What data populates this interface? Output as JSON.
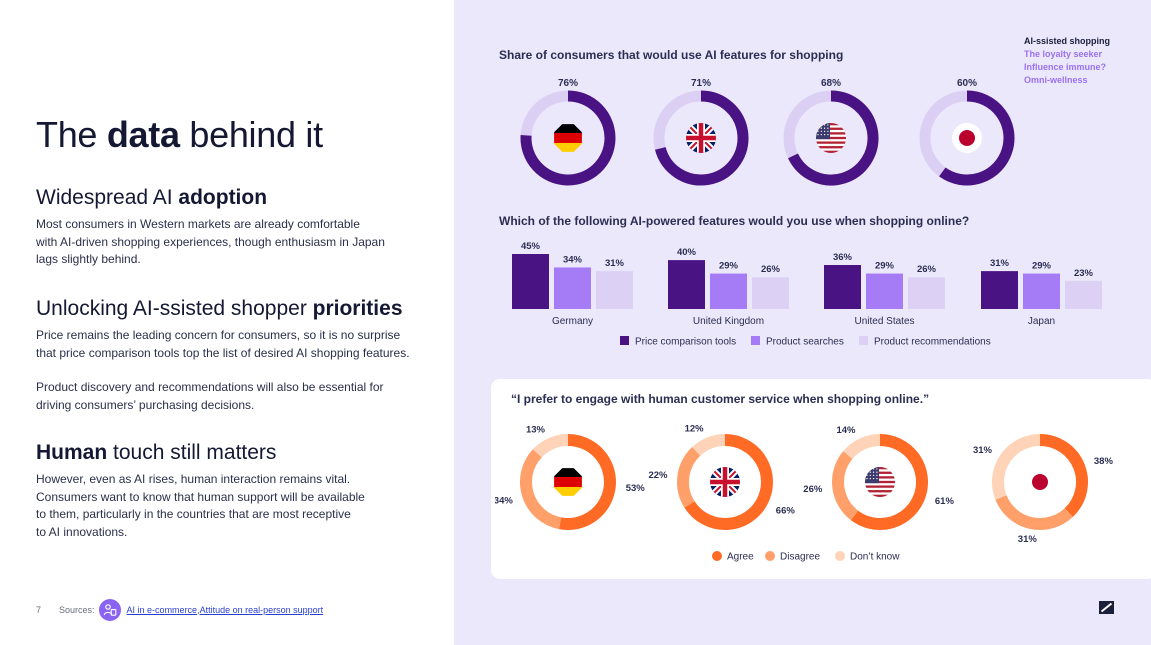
{
  "page": {
    "title_pre": "The ",
    "title_bold": "data",
    "title_post": " behind it",
    "page_number": "7"
  },
  "sections": [
    {
      "heading_pre": "Widespread AI ",
      "heading_bold": "adoption",
      "heading_post": "",
      "paragraphs": [
        "Most consumers in Western markets are already comfortable\nwith AI-driven shopping experiences, though enthusiasm in Japan\nlags slightly behind."
      ]
    },
    {
      "heading_pre": "Unlocking AI-ssisted shopper ",
      "heading_bold": "priorities",
      "heading_post": "",
      "paragraphs": [
        "Price remains the leading concern for consumers, so it is no surprise\nthat price comparison tools top the list of desired AI shopping features.",
        "Product discovery and recommendations will also be essential for\ndriving consumers’ purchasing decisions."
      ]
    },
    {
      "heading_pre": "",
      "heading_bold": "Human",
      "heading_post": " touch still matters",
      "paragraphs": [
        "However, even as AI rises, human interaction remains vital.\nConsumers want to know that human support will be available\nto them, particularly in the countries that are most receptive\nto AI innovations."
      ]
    }
  ],
  "footer": {
    "sources_label": "Sources:",
    "link1": "AI in e-commerce",
    "separator": ", ",
    "link2": "Attitude on real-person support"
  },
  "segments": {
    "items": [
      {
        "label": "AI-ssisted shopping",
        "color": "#1b1f3b"
      },
      {
        "label": "The loyalty seeker",
        "color": "#9a72f0"
      },
      {
        "label": "Influence immune?",
        "color": "#9a72f0"
      },
      {
        "label": "Omni-wellness",
        "color": "#9a72f0"
      }
    ]
  },
  "icons": {
    "sources": "people-icon",
    "brand": "brand-logo-icon",
    "flags": [
      "germany-flag-icon",
      "uk-flag-icon",
      "us-flag-icon",
      "japan-flag-icon"
    ]
  },
  "chart_data": [
    {
      "type": "pie",
      "title": "Share of consumers that would use AI features for shopping",
      "categories": [
        "Germany",
        "United Kingdom",
        "United States",
        "Japan"
      ],
      "values": [
        76,
        71,
        68,
        60
      ],
      "value_labels": [
        "76%",
        "71%",
        "68%",
        "60%"
      ],
      "colors": {
        "filled": "#4a1384",
        "remainder": "#dccff4"
      }
    },
    {
      "type": "bar",
      "title": "Which of the following AI-powered features would you use when shopping online?",
      "categories": [
        "Germany",
        "United Kingdom",
        "United States",
        "Japan"
      ],
      "series": [
        {
          "name": "Price comparison tools",
          "values": [
            45,
            40,
            36,
            31
          ],
          "color": "#4a1384"
        },
        {
          "name": "Product searches",
          "values": [
            34,
            29,
            29,
            29
          ],
          "color": "#a57cf5"
        },
        {
          "name": "Product recommendations",
          "values": [
            31,
            26,
            26,
            23
          ],
          "color": "#dcd0f5"
        }
      ],
      "ylim": [
        0,
        45
      ],
      "legend": "bottom"
    },
    {
      "type": "pie",
      "title": "“I prefer to engage with human customer service when shopping online.”",
      "categories": [
        "Germany",
        "United Kingdom",
        "United States",
        "Japan"
      ],
      "series": [
        {
          "name": "Agree",
          "values": [
            53,
            66,
            61,
            38
          ],
          "color": "#ff6a24"
        },
        {
          "name": "Disagree",
          "values": [
            34,
            22,
            26,
            31
          ],
          "color": "#ffa06a"
        },
        {
          "name": "Don’t know",
          "values": [
            13,
            12,
            14,
            31
          ],
          "color": "#ffd3b8"
        }
      ],
      "legend": "bottom"
    }
  ]
}
